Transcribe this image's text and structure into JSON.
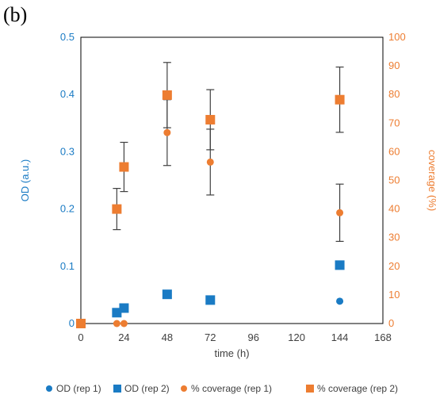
{
  "panel_label": "(b)",
  "colors": {
    "blue": "#1a7bc4",
    "orange": "#ed7d31",
    "error_bar": "#404040"
  },
  "chart_data": {
    "type": "scatter",
    "xlabel": "time (h)",
    "ylabel": "OD (a.u.)",
    "y2label": "coverage (%)",
    "xlim": [
      0,
      168
    ],
    "ylim": [
      0,
      0.5
    ],
    "y2lim": [
      0,
      100
    ],
    "xticks": [
      "0",
      "24",
      "48",
      "72",
      "96",
      "120",
      "144",
      "168"
    ],
    "yticks": [
      "0",
      "0.1",
      "0.2",
      "0.3",
      "0.4",
      "0.5"
    ],
    "y2ticks": [
      "0",
      "10",
      "20",
      "30",
      "40",
      "50",
      "60",
      "70",
      "80",
      "90",
      "100"
    ],
    "grid": false,
    "legend": "bottom",
    "series": [
      {
        "name": "OD (rep 1)",
        "axis": "left",
        "marker": "circle",
        "color": "#1a7bc4",
        "x": [
          144
        ],
        "y": [
          0.039
        ]
      },
      {
        "name": "OD (rep 2)",
        "axis": "left",
        "marker": "square",
        "color": "#1a7bc4",
        "x": [
          20,
          24,
          48,
          72,
          144
        ],
        "y": [
          0.019,
          0.027,
          0.051,
          0.041,
          0.102
        ]
      },
      {
        "name": "% coverage (rep 1)",
        "axis": "right",
        "marker": "circle",
        "color": "#ed7d31",
        "x": [
          0,
          20,
          24,
          48,
          72,
          144
        ],
        "y": [
          0,
          0,
          0,
          66.7,
          56.4,
          38.7
        ],
        "err": [
          0,
          0,
          0,
          11.5,
          11.5,
          10
        ]
      },
      {
        "name": "% coverage (rep 2)",
        "axis": "right",
        "marker": "square",
        "color": "#ed7d31",
        "x": [
          0,
          20,
          24,
          48,
          72,
          144
        ],
        "y": [
          0,
          40,
          54.7,
          79.8,
          71.2,
          78.2
        ],
        "err": [
          0,
          7.2,
          8.6,
          11.4,
          10.5,
          11.4
        ]
      }
    ]
  }
}
